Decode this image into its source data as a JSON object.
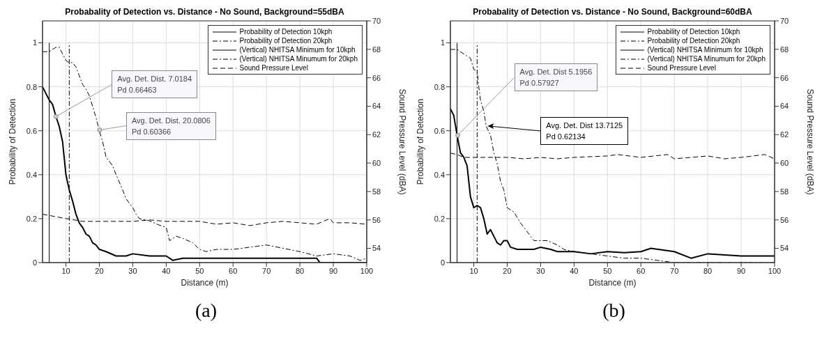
{
  "chart_data": [
    {
      "type": "line",
      "title": "Probabality of Detection vs. Distance - No Sound, Background=55dBA",
      "xlabel": "Distance (m)",
      "ylabel": "Probability of Detection",
      "y2label": "Sound Pressure Level (dBA)",
      "xlim": [
        3,
        100
      ],
      "xticks": [
        10,
        20,
        30,
        40,
        50,
        60,
        70,
        80,
        90,
        100
      ],
      "ylim": [
        0,
        1.1
      ],
      "yticks": [
        0,
        0.2,
        0.4,
        0.6,
        0.8,
        1
      ],
      "y2lim": [
        53,
        70
      ],
      "y2ticks": [
        54,
        56,
        58,
        60,
        62,
        64,
        66,
        68,
        70
      ],
      "grid": true,
      "legend": "top right",
      "series": [
        {
          "name": "Probability of Detection 10kph",
          "color": "#000000",
          "line_style": "solid",
          "x": [
            3,
            4,
            5,
            6,
            7,
            8,
            9,
            10,
            11,
            12,
            13,
            14,
            15,
            16,
            17,
            18,
            19,
            20,
            22,
            25,
            28,
            30,
            35,
            40,
            42,
            45,
            50,
            55,
            60,
            65,
            70,
            75,
            80,
            85,
            86,
            90,
            95,
            100
          ],
          "values": [
            0.8,
            0.77,
            0.74,
            0.72,
            0.665,
            0.62,
            0.55,
            0.4,
            0.33,
            0.28,
            0.22,
            0.18,
            0.16,
            0.13,
            0.12,
            0.09,
            0.08,
            0.06,
            0.05,
            0.03,
            0.03,
            0.04,
            0.03,
            0.03,
            0.01,
            0.02,
            0.02,
            0.02,
            0.02,
            0.02,
            0.02,
            0.02,
            0.02,
            0.02,
            0,
            0,
            0,
            0
          ]
        },
        {
          "name": "Probability of Detection 20kph",
          "color": "#000000",
          "line_style": "dashdot",
          "x": [
            3,
            5,
            6,
            7,
            8,
            9,
            10,
            11,
            12,
            13,
            14,
            15,
            16,
            17,
            18,
            19,
            20,
            21,
            22,
            24,
            25,
            27,
            28,
            30,
            31,
            32,
            35,
            38,
            40,
            41,
            43,
            45,
            48,
            50,
            52,
            55,
            60,
            70,
            80,
            85,
            90,
            95,
            98,
            100
          ],
          "values": [
            0.96,
            0.96,
            0.97,
            0.98,
            0.98,
            0.95,
            0.92,
            0.91,
            0.91,
            0.89,
            0.85,
            0.81,
            0.79,
            0.76,
            0.71,
            0.66,
            0.6,
            0.55,
            0.48,
            0.44,
            0.4,
            0.33,
            0.29,
            0.25,
            0.22,
            0.2,
            0.19,
            0.17,
            0.16,
            0.1,
            0.12,
            0.11,
            0.09,
            0.06,
            0.05,
            0.06,
            0.06,
            0.08,
            0.05,
            0.03,
            0.04,
            0.03,
            0.01,
            0.02
          ]
        },
        {
          "name": "(Vertical) NHITSA Minimum for 10kph",
          "color": "#000000",
          "line_style": "solid",
          "x": [
            5,
            5
          ],
          "values": [
            0,
            1
          ]
        },
        {
          "name": "(Vertical) NHITSA Minumum for 20kph",
          "color": "#000000",
          "line_style": "dashdot",
          "x": [
            11,
            11
          ],
          "values": [
            0,
            1
          ]
        },
        {
          "name": "Sound Pressure Level",
          "color": "#000000",
          "line_style": "dashed",
          "axis": "y2",
          "x": [
            3,
            10,
            15,
            20,
            30,
            35,
            40,
            50,
            55,
            60,
            65,
            70,
            75,
            80,
            85,
            89,
            90,
            95,
            100
          ],
          "values": [
            56.4,
            56.1,
            55.9,
            55.9,
            55.9,
            56,
            55.9,
            55.9,
            55.7,
            55.8,
            55.6,
            55.8,
            55.9,
            55.8,
            55.7,
            56.1,
            55.8,
            55.8,
            55.7
          ]
        }
      ],
      "annotations": [
        {
          "text": "Avg. Det. Dist. 7.0184 Pd 0.66463",
          "x": 7.0184,
          "y": 0.66463
        },
        {
          "text": "Avg. Det. Dist. 20.0806 Pd 0.60366",
          "x": 20.0806,
          "y": 0.60366
        },
        "(a)"
      ]
    },
    {
      "type": "line",
      "title": "Probabality of Detection vs. Distance - No Sound, Background=60dBA",
      "xlabel": "Distance (m)",
      "ylabel": "Probability of Detection",
      "y2label": "Sound Pressure Level (dBA)",
      "xlim": [
        3,
        100
      ],
      "xticks": [
        10,
        20,
        30,
        40,
        50,
        60,
        70,
        80,
        90,
        100
      ],
      "ylim": [
        0,
        1.1
      ],
      "yticks": [
        0,
        0.2,
        0.4,
        0.6,
        0.8,
        1
      ],
      "y2lim": [
        53,
        70
      ],
      "y2ticks": [
        54,
        56,
        58,
        60,
        62,
        64,
        66,
        68,
        70
      ],
      "grid": true,
      "legend": "top right",
      "series": [
        {
          "name": "Probability of Detection 10kph",
          "color": "#000000",
          "line_style": "solid",
          "x": [
            3,
            4,
            5,
            6,
            7,
            8,
            9,
            10,
            11,
            12,
            13,
            14,
            15,
            16,
            17,
            18,
            19,
            20,
            21,
            23,
            25,
            28,
            30,
            33,
            35,
            40,
            45,
            50,
            55,
            60,
            63,
            70,
            75,
            80,
            90,
            100
          ],
          "values": [
            0.7,
            0.67,
            0.58,
            0.5,
            0.48,
            0.44,
            0.3,
            0.25,
            0.26,
            0.25,
            0.2,
            0.13,
            0.15,
            0.12,
            0.09,
            0.08,
            0.1,
            0.1,
            0.07,
            0.06,
            0.06,
            0.06,
            0.07,
            0.06,
            0.05,
            0.05,
            0.04,
            0.05,
            0.045,
            0.05,
            0.065,
            0.05,
            0.02,
            0.04,
            0.03,
            0.03
          ]
        },
        {
          "name": "Probability of Detection 20kph",
          "color": "#000000",
          "line_style": "dashdot",
          "x": [
            3,
            5,
            7,
            9,
            10,
            11,
            11.5,
            12,
            13,
            13.7,
            15,
            16,
            17,
            18,
            19,
            20,
            22,
            24,
            25,
            27,
            28,
            30,
            32,
            35,
            37,
            40,
            45,
            50,
            55,
            60,
            65,
            70,
            75,
            100
          ],
          "values": [
            0.97,
            0.97,
            0.95,
            0.93,
            0.88,
            0.87,
            0.8,
            0.74,
            0.69,
            0.62,
            0.58,
            0.5,
            0.45,
            0.37,
            0.33,
            0.25,
            0.23,
            0.18,
            0.16,
            0.12,
            0.1,
            0.1,
            0.1,
            0.08,
            0.06,
            0.05,
            0.04,
            0.03,
            0.02,
            0.02,
            0.01,
            0,
            0,
            0
          ]
        },
        {
          "name": "(Vertical) NHITSA Minimum for 10kph",
          "color": "#000000",
          "line_style": "solid",
          "x": [
            5,
            5
          ],
          "values": [
            0,
            1
          ]
        },
        {
          "name": "(Vertical) NHITSA Minumum for 20kph",
          "color": "#000000",
          "line_style": "dashdot",
          "x": [
            11,
            11
          ],
          "values": [
            0,
            1
          ]
        },
        {
          "name": "Sound Pressure Level",
          "color": "#000000",
          "line_style": "dashed",
          "axis": "y2",
          "x": [
            3,
            5,
            7,
            10,
            20,
            25,
            30,
            35,
            40,
            50,
            53,
            60,
            68,
            70,
            80,
            85,
            90,
            97,
            100
          ],
          "values": [
            60.7,
            60.6,
            60.4,
            60.4,
            60.4,
            60.3,
            60.4,
            60.3,
            60.4,
            60.5,
            60.6,
            60.4,
            60.6,
            60.3,
            60.5,
            60.3,
            60.4,
            60.6,
            60.3
          ]
        }
      ],
      "annotations": [
        {
          "text": "Avg. Det. Dist 5.1956 Pd 0.57927",
          "x": 5.1956,
          "y": 0.57927
        },
        {
          "text": "Avg. Det. Dist 13.7125 Pd 0.62134",
          "x": 13.7125,
          "y": 0.62134
        },
        "(b)"
      ]
    }
  ]
}
